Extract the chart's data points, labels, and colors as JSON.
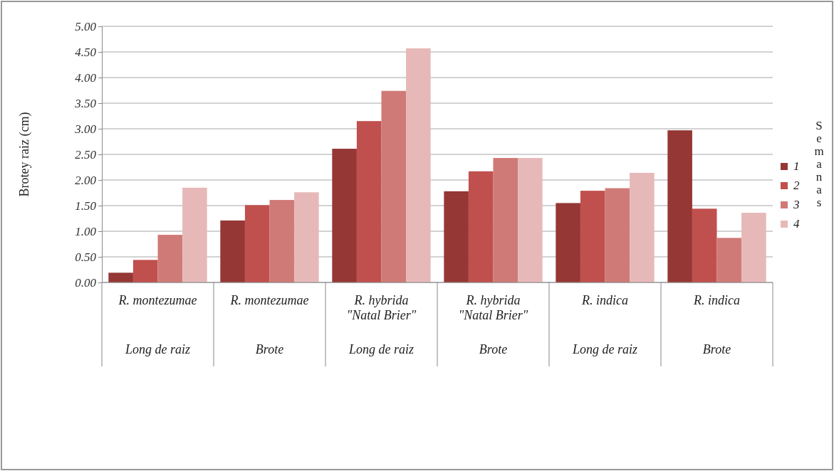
{
  "chart_data": {
    "type": "bar",
    "ylabel": "Brotey raiz (cm)",
    "legend_title": "Semanas",
    "categories": [
      "R. montezumae",
      "R. montezumae",
      "R. hybrida \"Natal Brier\"",
      "R. hybrida \"Natal Brier\"",
      "R. indica",
      "R. indica"
    ],
    "annotations": [
      "Long de raiz",
      "Brote",
      "Long de raiz",
      "Brote",
      "Long de raiz",
      "Brote"
    ],
    "series": [
      {
        "name": "1",
        "color": "#953735",
        "values": [
          0.19,
          1.21,
          2.61,
          1.78,
          1.55,
          2.97
        ]
      },
      {
        "name": "2",
        "color": "#c0504d",
        "values": [
          0.44,
          1.51,
          3.15,
          2.17,
          1.79,
          1.44
        ]
      },
      {
        "name": "3",
        "color": "#d07a78",
        "values": [
          0.93,
          1.61,
          3.74,
          2.43,
          1.84,
          0.87
        ]
      },
      {
        "name": "4",
        "color": "#e6b9b8",
        "values": [
          1.85,
          1.76,
          4.57,
          2.43,
          2.14,
          1.36
        ]
      }
    ],
    "ylim": [
      0,
      5
    ],
    "yticks": [
      {
        "value": 0,
        "label": "0.00"
      },
      {
        "value": 0.5,
        "label": "0.50"
      },
      {
        "value": 1,
        "label": "1.00"
      },
      {
        "value": 1.5,
        "label": "1.50"
      },
      {
        "value": 2,
        "label": "2.00"
      },
      {
        "value": 2.5,
        "label": "2.50"
      },
      {
        "value": 3,
        "label": "3.00"
      },
      {
        "value": 3.5,
        "label": "3.50"
      },
      {
        "value": 4,
        "label": "4.00"
      },
      {
        "value": 4.5,
        "label": "4.50"
      },
      {
        "value": 5,
        "label": "5.00"
      }
    ],
    "grid": "y",
    "legend": "right"
  }
}
